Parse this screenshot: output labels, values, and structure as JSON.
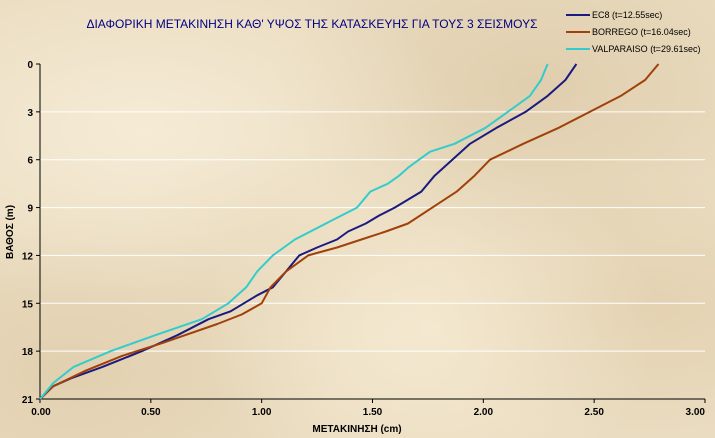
{
  "chart_data": {
    "type": "line",
    "title": "ΔΙΑΦΟΡΙΚΗ ΜΕΤΑΚΙΝΗΣΗ ΚΑΘ' ΥΨΟΣ ΤΗΣ ΚΑΤΑΣΚΕΥΗΣ ΓΙΑ ΤΟΥΣ 3 ΣΕΙΣΜΟΥΣ",
    "xlabel": "ΜΕΤΑΚΙΝΗΣΗ (cm)",
    "ylabel": "ΒΑΘΟΣ (m)",
    "xlim": [
      0,
      3
    ],
    "ylim": [
      0,
      21
    ],
    "y_inverted": true,
    "x_ticks": [
      "0.00",
      "0.50",
      "1.00",
      "1.50",
      "2.00",
      "2.50",
      "3.00"
    ],
    "y_ticks": [
      "0",
      "3",
      "6",
      "9",
      "12",
      "15",
      "18",
      "21"
    ],
    "grid": "horizontal",
    "legend_position": "top-right",
    "series": [
      {
        "name": "EC8 (t=12.55sec)",
        "color": "#1a1a80",
        "x": [
          2.42,
          2.37,
          2.29,
          2.19,
          2.06,
          1.94,
          1.86,
          1.78,
          1.72,
          1.66,
          1.6,
          1.53,
          1.47,
          1.39,
          1.34,
          1.25,
          1.17,
          1.11,
          1.05,
          0.98,
          0.86,
          0.76,
          0.62,
          0.46,
          0.28,
          0.14,
          0.06,
          0.0
        ],
        "y": [
          0,
          1,
          2,
          3,
          4,
          5,
          6,
          7,
          8,
          8.5,
          9,
          9.5,
          10,
          10.5,
          11,
          11.5,
          12,
          13,
          14,
          14.5,
          15.5,
          16,
          17,
          18,
          19,
          19.7,
          20.2,
          21
        ]
      },
      {
        "name": "BORREGO (t=16.04sec)",
        "color": "#a0400a",
        "x": [
          2.79,
          2.73,
          2.62,
          2.48,
          2.34,
          2.18,
          2.03,
          1.96,
          1.88,
          1.77,
          1.66,
          1.56,
          1.45,
          1.34,
          1.21,
          1.11,
          1.04,
          1.0,
          0.91,
          0.8,
          0.55,
          0.37,
          0.21,
          0.06,
          0.0
        ],
        "y": [
          0,
          1,
          2,
          3,
          4,
          5,
          6,
          7,
          8,
          9,
          10,
          10.5,
          11,
          11.5,
          12,
          13,
          14,
          15,
          15.7,
          16.3,
          17.5,
          18.3,
          19.2,
          20.2,
          21
        ]
      },
      {
        "name": "VALPARAISO (t=29.61sec)",
        "color": "#33cccc",
        "x": [
          2.29,
          2.26,
          2.21,
          2.11,
          2.01,
          1.87,
          1.76,
          1.71,
          1.66,
          1.62,
          1.57,
          1.49,
          1.43,
          1.36,
          1.29,
          1.22,
          1.15,
          1.05,
          0.98,
          0.93,
          0.85,
          0.73,
          0.52,
          0.32,
          0.15,
          0.06,
          0.0
        ],
        "y": [
          0,
          1,
          2,
          3,
          4,
          5,
          5.5,
          6,
          6.5,
          7,
          7.5,
          8,
          9,
          9.5,
          10,
          10.5,
          11,
          12,
          13,
          14,
          15,
          16,
          17,
          18,
          19,
          20,
          21
        ]
      }
    ]
  }
}
